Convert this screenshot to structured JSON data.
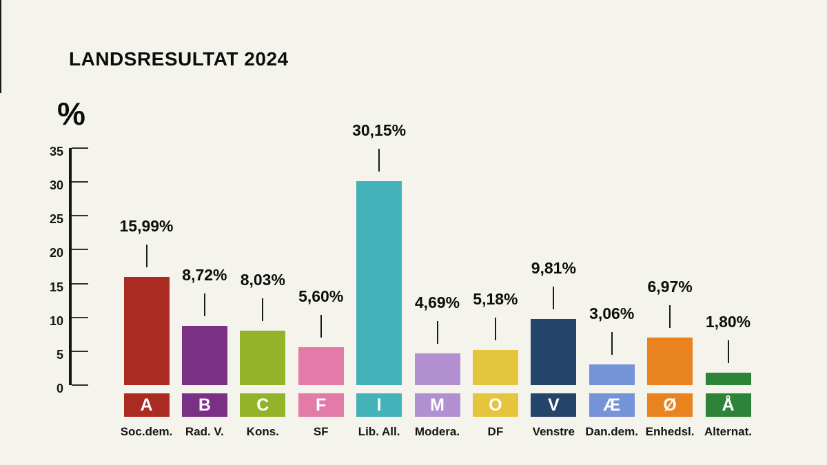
{
  "chart_data": {
    "type": "bar",
    "title": "LANDSRESULTAT 2024",
    "ylabel": "%",
    "xlabel": "",
    "ylim": [
      0,
      35
    ],
    "yticks": [
      0,
      5,
      10,
      15,
      20,
      25,
      30,
      35
    ],
    "grid": false,
    "legend": "none",
    "categories": [
      "A",
      "B",
      "C",
      "F",
      "I",
      "M",
      "O",
      "V",
      "Æ",
      "Ø",
      "Å"
    ],
    "party_names": [
      "Soc.dem.",
      "Rad. V.",
      "Kons.",
      "SF",
      "Lib. All.",
      "Modera.",
      "DF",
      "Venstre",
      "Dan.dem.",
      "Enhedsl.",
      "Alternat."
    ],
    "values": [
      15.99,
      8.72,
      8.03,
      5.6,
      30.15,
      4.69,
      5.18,
      9.81,
      3.06,
      6.97,
      1.8
    ],
    "value_labels": [
      "15,99%",
      "8,72%",
      "8,03%",
      "5,60%",
      "30,15%",
      "4,69%",
      "5,18%",
      "9,81%",
      "3,06%",
      "6,97%",
      "1,80%"
    ],
    "bar_colors": [
      "#aa2b22",
      "#7a3085",
      "#94b32b",
      "#e27ba8",
      "#44b2b9",
      "#b28fd1",
      "#e6c53e",
      "#25446a",
      "#7793d7",
      "#e8831f",
      "#2d8438"
    ],
    "background_color": "#f4f4ec",
    "axis_color": "#141414",
    "text_color": "#0d0d0d",
    "badge_text_color": "#ffffff"
  }
}
